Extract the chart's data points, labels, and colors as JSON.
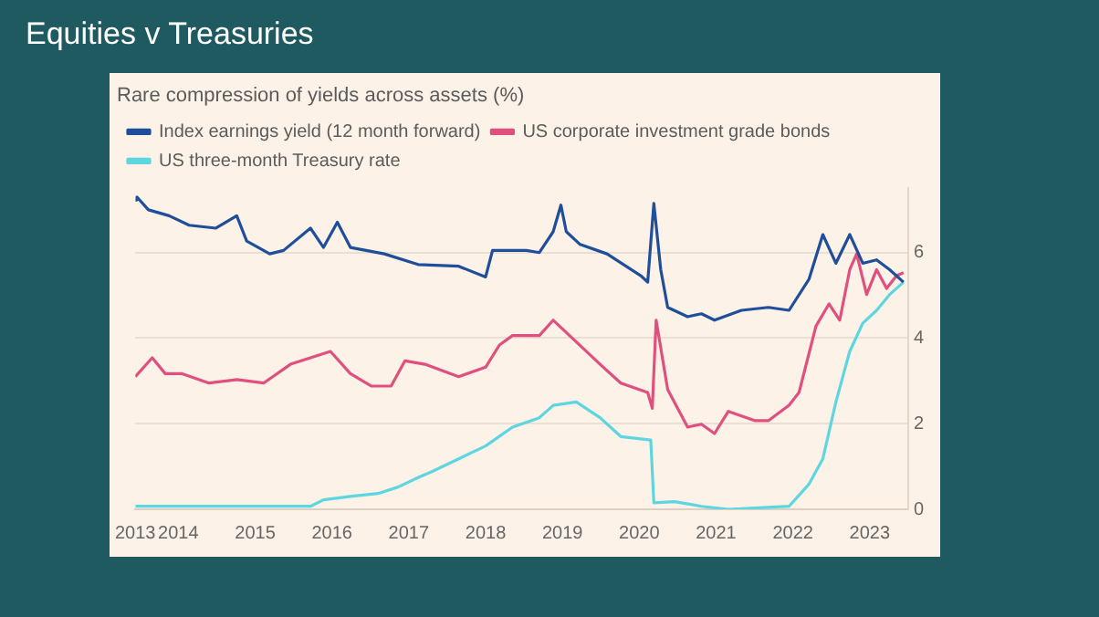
{
  "chart_data": {
    "type": "line",
    "title": "Equities v Treasuries",
    "subtitle": "Rare compression of yields across assets (%)",
    "xlim": [
      2013.44,
      2023.5
    ],
    "xticks": [
      {
        "value": 2013.44,
        "label": "2013"
      },
      2014,
      2015,
      2016,
      2017,
      2018,
      2019,
      2020,
      2021,
      2022,
      2023
    ],
    "ylim": [
      0,
      7.5
    ],
    "yticks": [
      0,
      2,
      4,
      6
    ],
    "grid": "y",
    "legend": "top left",
    "marker": "none",
    "line_style": "solid",
    "series": [
      {
        "name": "Index earnings yield (12 month forward)",
        "color": "#1f4e9a",
        "x": [
          2013.44,
          2013.46,
          2013.61,
          2013.88,
          2014.14,
          2014.49,
          2014.76,
          2014.89,
          2015.19,
          2015.37,
          2015.72,
          2015.89,
          2016.07,
          2016.24,
          2016.68,
          2017.12,
          2017.65,
          2018,
          2018.09,
          2018.53,
          2018.7,
          2018.88,
          2018.98,
          2019.05,
          2019.23,
          2019.58,
          2020.02,
          2020.11,
          2020.19,
          2020.28,
          2020.37,
          2020.63,
          2020.81,
          2020.98,
          2021.33,
          2021.68,
          2021.95,
          2022.21,
          2022.39,
          2022.56,
          2022.74,
          2022.91,
          2023.09,
          2023.26,
          2023.44
        ],
        "values": [
          7.23,
          7.3,
          7.0,
          6.86,
          6.64,
          6.57,
          6.86,
          6.27,
          5.97,
          6.05,
          6.57,
          6.12,
          6.71,
          6.12,
          5.97,
          5.72,
          5.68,
          5.43,
          6.05,
          6.05,
          6.0,
          6.49,
          7.11,
          6.49,
          6.19,
          5.97,
          5.46,
          5.31,
          7.15,
          5.6,
          4.72,
          4.5,
          4.57,
          4.42,
          4.65,
          4.72,
          4.65,
          5.38,
          6.42,
          5.75,
          6.42,
          5.75,
          5.83,
          5.6,
          5.31
        ]
      },
      {
        "name": "US corporate investment grade bonds",
        "color": "#e0507f",
        "x": [
          2013.44,
          2013.66,
          2013.83,
          2014.05,
          2014.4,
          2014.76,
          2015.11,
          2015.46,
          2015.98,
          2016.24,
          2016.51,
          2016.77,
          2016.95,
          2017.21,
          2017.65,
          2018,
          2018.18,
          2018.35,
          2018.7,
          2018.88,
          2019.14,
          2019.49,
          2019.76,
          2020.11,
          2020.17,
          2020.22,
          2020.37,
          2020.63,
          2020.81,
          2020.98,
          2021.16,
          2021.51,
          2021.68,
          2021.95,
          2022.08,
          2022.3,
          2022.47,
          2022.61,
          2022.74,
          2022.83,
          2022.96,
          2023.09,
          2023.22,
          2023.35,
          2023.44
        ],
        "values": [
          3.1,
          3.54,
          3.17,
          3.17,
          2.95,
          3.03,
          2.95,
          3.39,
          3.69,
          3.17,
          2.88,
          2.88,
          3.47,
          3.39,
          3.1,
          3.32,
          3.84,
          4.06,
          4.06,
          4.42,
          3.98,
          3.39,
          2.95,
          2.73,
          2.36,
          4.42,
          2.8,
          1.92,
          1.99,
          1.77,
          2.29,
          2.07,
          2.07,
          2.43,
          2.73,
          4.28,
          4.8,
          4.42,
          5.6,
          5.97,
          5.02,
          5.6,
          5.16,
          5.46,
          5.53
        ]
      },
      {
        "name": "US three-month Treasury rate",
        "color": "#5dd6e0",
        "x": [
          2013.44,
          2015.72,
          2015.89,
          2016.24,
          2016.6,
          2016.86,
          2017.12,
          2017.3,
          2017.65,
          2018,
          2018.35,
          2018.7,
          2018.88,
          2019.18,
          2019.49,
          2019.76,
          2020.15,
          2020.19,
          2020.46,
          2020.81,
          2021.16,
          2021.95,
          2022.21,
          2022.39,
          2022.56,
          2022.74,
          2022.91,
          2023.09,
          2023.26,
          2023.44
        ],
        "values": [
          0.07,
          0.07,
          0.22,
          0.3,
          0.37,
          0.52,
          0.74,
          0.88,
          1.18,
          1.48,
          1.92,
          2.14,
          2.43,
          2.51,
          2.14,
          1.7,
          1.62,
          0.15,
          0.18,
          0.07,
          0,
          0.07,
          0.59,
          1.18,
          2.51,
          3.69,
          4.35,
          4.65,
          5.02,
          5.31
        ]
      }
    ]
  }
}
